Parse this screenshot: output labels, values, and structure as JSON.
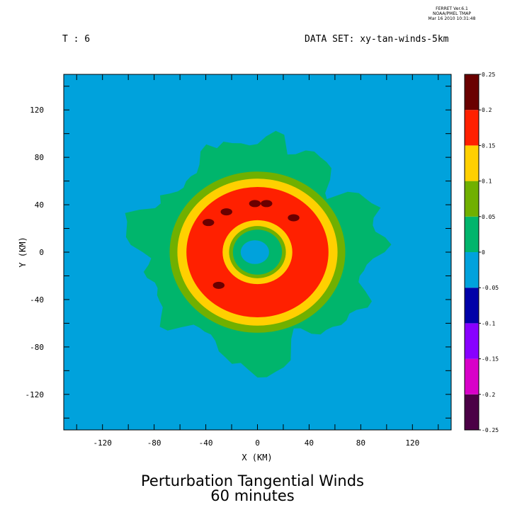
{
  "header": {
    "ferret_line1": "FERRET  Ver.6.1",
    "ferret_line2": "NOAA/PMEL TMAP",
    "ferret_line3": "Mar 16 2010 10:31:48",
    "time_label": "T : 6",
    "dataset_label": "DATA SET: xy-tan-winds-5km"
  },
  "title": {
    "line1": "Perturbation Tangential Winds",
    "line2": "60 minutes"
  },
  "chart_data": {
    "type": "contour",
    "xlabel": "X (KM)",
    "ylabel": "Y (KM)",
    "xlim": [
      -150,
      150
    ],
    "ylim": [
      -150,
      150
    ],
    "xticks": [
      -120,
      -80,
      -40,
      0,
      40,
      80,
      120
    ],
    "yticks": [
      -120,
      -80,
      -40,
      0,
      40,
      80,
      120
    ],
    "xtick_labels": [
      "-120",
      "-80",
      "-40",
      "0",
      "40",
      "80",
      "120"
    ],
    "ytick_labels": [
      "-120",
      "-80",
      "-40",
      "0",
      "40",
      "80",
      "120"
    ],
    "colorbar": {
      "levels": [
        -0.25,
        -0.2,
        -0.15,
        -0.1,
        -0.05,
        0,
        0.05,
        0.1,
        0.15,
        0.2,
        0.25
      ],
      "labels": [
        "-0.25",
        "-0.2",
        "-0.15",
        "-0.1",
        "-0.05",
        "0",
        "0.05",
        "0.1",
        "0.15",
        "0.2",
        "0.25"
      ],
      "colors": [
        "#4b0046",
        "#d800c8",
        "#8800ff",
        "#0000a8",
        "#00a2dc",
        "#00b56c",
        "#70b000",
        "#ffd000",
        "#ff2000",
        "#6a0000"
      ]
    },
    "background_value_band": [
      -0.05,
      0
    ],
    "regions": [
      {
        "band": [
          0,
          0.05
        ],
        "color": "#00b56c",
        "kind": "irregular outer envelope",
        "radius_km_approx": 95
      },
      {
        "band": [
          0.05,
          0.1
        ],
        "color": "#70b000",
        "kind": "ring",
        "center_km": [
          0,
          0
        ],
        "outer_radius_km": 68,
        "inner_radius_km": 16
      },
      {
        "band": [
          0.1,
          0.15
        ],
        "color": "#ffd000",
        "kind": "ring",
        "center_km": [
          0,
          0
        ],
        "outer_radius_km": 62,
        "inner_radius_km": 19
      },
      {
        "band": [
          0.15,
          0.2
        ],
        "color": "#ff2000",
        "kind": "ring",
        "center_km": [
          0,
          0
        ],
        "outer_radius_km": 55,
        "inner_radius_km": 27
      },
      {
        "band": [
          0.2,
          0.25
        ],
        "color": "#6a0000",
        "kind": "small patches",
        "locations_km": [
          [
            -38,
            25
          ],
          [
            -24,
            34
          ],
          [
            -2,
            41
          ],
          [
            7,
            41
          ],
          [
            28,
            29
          ],
          [
            -30,
            -28
          ]
        ]
      }
    ]
  }
}
